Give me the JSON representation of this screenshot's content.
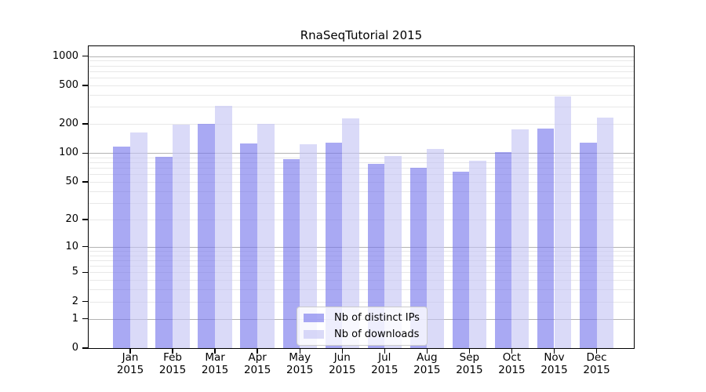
{
  "chart_data": {
    "type": "bar",
    "title": "RnaSeqTutorial 2015",
    "categories": [
      "Jan 2015",
      "Feb 2015",
      "Mar 2015",
      "Apr 2015",
      "May 2015",
      "Jun 2015",
      "Jul 2015",
      "Aug 2015",
      "Sep 2015",
      "Oct 2015",
      "Nov 2015",
      "Dec 2015"
    ],
    "month_labels": [
      "Jan",
      "Feb",
      "Mar",
      "Apr",
      "May",
      "Jun",
      "Jul",
      "Aug",
      "Sep",
      "Oct",
      "Nov",
      "Dec"
    ],
    "year_label": "2015",
    "series": [
      {
        "name": "Nb of distinct IPs",
        "color": "#7474EB",
        "values": [
          117,
          91,
          199,
          125,
          87,
          127,
          78,
          71,
          64,
          102,
          178,
          127
        ]
      },
      {
        "name": "Nb of downloads",
        "color": "#C4C4F4",
        "values": [
          162,
          198,
          310,
          199,
          124,
          227,
          93,
          111,
          84,
          176,
          383,
          235
        ]
      }
    ],
    "y_axis": {
      "scale": "log1p",
      "tick_values": [
        0,
        1,
        2,
        5,
        10,
        20,
        50,
        100,
        200,
        500,
        1000
      ],
      "major_grid_values": [
        1,
        10,
        100,
        1000
      ],
      "ylim": [
        0,
        1250
      ],
      "grid": true
    },
    "legend": {
      "position": "bottom-center-inside"
    },
    "colors": {
      "major_grid": "#b3b3b3",
      "minor_grid": "#e8e8e8",
      "axis": "#000000"
    }
  }
}
